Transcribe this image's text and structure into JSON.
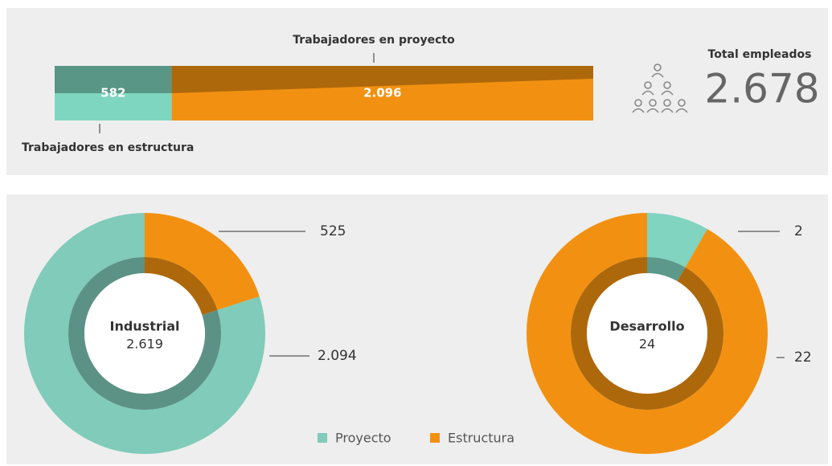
{
  "chart_data": [
    {
      "type": "stacked_bar",
      "series": [
        {
          "name": "Trabajadores en estructura",
          "color": "#7fd6c0",
          "values": [
            582
          ]
        },
        {
          "name": "Trabajadores en proyecto",
          "color": "#f29111",
          "values": [
            2096
          ],
          "value_labels": [
            "2.096"
          ]
        }
      ],
      "total_label": "Total empleados",
      "total": 2678,
      "total_value_label": "2.678"
    },
    {
      "type": "donut",
      "center_label": "Industrial",
      "total": 2619,
      "total_value_label": "2.619",
      "categories": [
        "Estructura",
        "Proyecto"
      ],
      "colors": [
        "#f29111",
        "#80cbba"
      ],
      "values": [
        525,
        2094
      ],
      "value_labels": [
        "525",
        "2.094"
      ]
    },
    {
      "type": "donut",
      "center_label": "Desarrollo",
      "total": 24,
      "categories": [
        "Proyecto",
        "Estructura"
      ],
      "colors": [
        "#80d4c0",
        "#f29111"
      ],
      "values": [
        2,
        22
      ]
    }
  ]
}
